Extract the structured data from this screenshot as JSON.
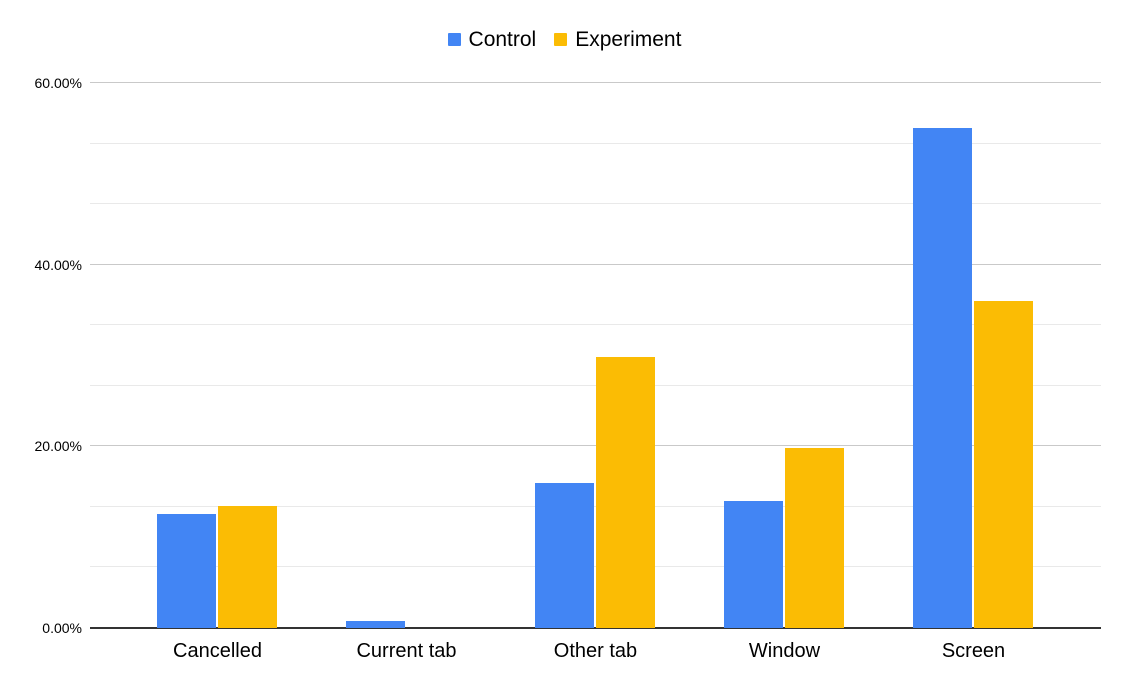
{
  "chart_data": {
    "type": "bar",
    "categories": [
      "Cancelled",
      "Current tab",
      "Other tab",
      "Window",
      "Screen"
    ],
    "series": [
      {
        "name": "Control",
        "color": "#4285F4",
        "values": [
          12.5,
          0.8,
          16.0,
          14.0,
          55.0
        ]
      },
      {
        "name": "Experiment",
        "color": "#FBBC04",
        "values": [
          13.4,
          0.0,
          29.8,
          19.8,
          36.0
        ]
      }
    ],
    "ylim": [
      0,
      60
    ],
    "y_ticks": [
      {
        "value": 0,
        "label": "0.00%"
      },
      {
        "value": 20,
        "label": "20.00%"
      },
      {
        "value": 40,
        "label": "40.00%"
      },
      {
        "value": 60,
        "label": "60.00%"
      }
    ],
    "y_minor_ticks": [
      6.67,
      13.33,
      26.67,
      33.33,
      46.67,
      53.33
    ],
    "legend_position": "top",
    "grid": true,
    "xlabel": "",
    "ylabel": ""
  },
  "colors": {
    "background": "#ffffff",
    "axis_line": "#333333",
    "gridline_major": "#c9c9c9",
    "gridline_minor": "#e9e9e9",
    "text": "#000000"
  }
}
